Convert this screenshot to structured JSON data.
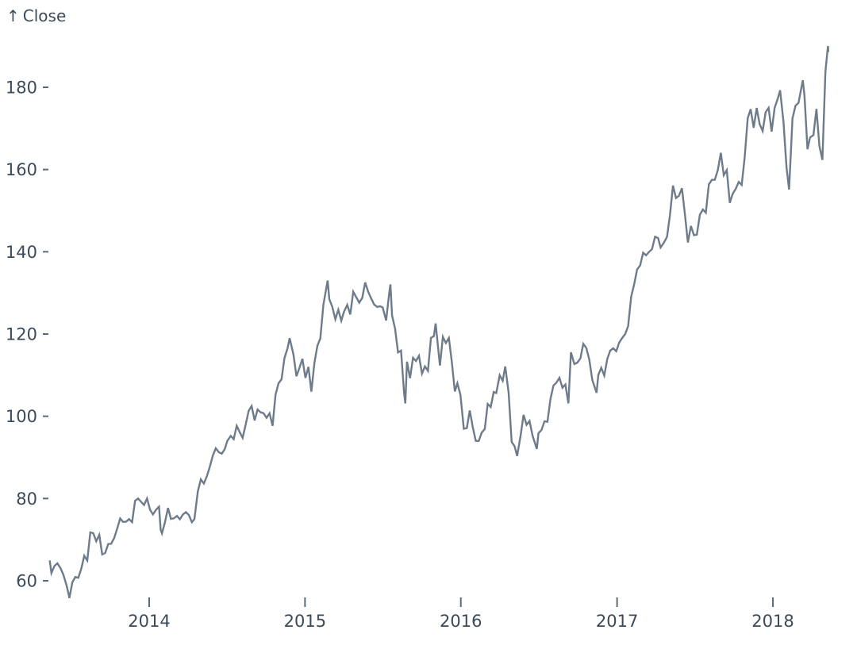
{
  "chart": {
    "y_axis": {
      "label_arrow": "↑",
      "label": "Close",
      "ticks": [
        60,
        80,
        100,
        120,
        140,
        160,
        180
      ]
    },
    "x_axis": {
      "ticks": [
        "2014",
        "2015",
        "2016",
        "2017",
        "2018"
      ]
    },
    "colors": {
      "line": "#6e7b8a",
      "text": "#3d4a57",
      "tick_mark": "#5c6b7a",
      "background": "#ffffff"
    }
  },
  "chart_data": {
    "type": "line",
    "title": "",
    "xlabel": "",
    "ylabel": "Close",
    "x_range": [
      "2013-05-13",
      "2018-05-11"
    ],
    "ylim": [
      55,
      192
    ],
    "grid": false,
    "legend": false,
    "series": [
      {
        "name": "Close",
        "points": [
          [
            "2013-05-13",
            64.96
          ],
          [
            "2013-05-17",
            61.89
          ],
          [
            "2013-05-24",
            63.59
          ],
          [
            "2013-05-31",
            64.25
          ],
          [
            "2013-06-07",
            63.12
          ],
          [
            "2013-06-14",
            61.43
          ],
          [
            "2013-06-21",
            59.07
          ],
          [
            "2013-06-26",
            56.87
          ],
          [
            "2013-06-28",
            55.79
          ],
          [
            "2013-07-05",
            59.63
          ],
          [
            "2013-07-12",
            60.93
          ],
          [
            "2013-07-19",
            60.71
          ],
          [
            "2013-07-26",
            62.99
          ],
          [
            "2013-08-02",
            66.08
          ],
          [
            "2013-08-09",
            64.92
          ],
          [
            "2013-08-16",
            71.76
          ],
          [
            "2013-08-23",
            71.57
          ],
          [
            "2013-08-30",
            69.6
          ],
          [
            "2013-09-06",
            71.17
          ],
          [
            "2013-09-13",
            66.41
          ],
          [
            "2013-09-20",
            66.77
          ],
          [
            "2013-09-27",
            68.96
          ],
          [
            "2013-10-04",
            69.0
          ],
          [
            "2013-10-11",
            70.4
          ],
          [
            "2013-10-18",
            72.7
          ],
          [
            "2013-10-25",
            75.14
          ],
          [
            "2013-11-01",
            74.29
          ],
          [
            "2013-11-08",
            74.37
          ],
          [
            "2013-11-15",
            74.99
          ],
          [
            "2013-11-22",
            74.26
          ],
          [
            "2013-11-29",
            79.44
          ],
          [
            "2013-12-06",
            80.0
          ],
          [
            "2013-12-13",
            79.2
          ],
          [
            "2013-12-20",
            78.43
          ],
          [
            "2013-12-27",
            80.01
          ],
          [
            "2014-01-03",
            77.28
          ],
          [
            "2014-01-10",
            76.13
          ],
          [
            "2014-01-17",
            77.24
          ],
          [
            "2014-01-24",
            78.01
          ],
          [
            "2014-01-28",
            72.36
          ],
          [
            "2014-01-31",
            71.51
          ],
          [
            "2014-02-07",
            74.24
          ],
          [
            "2014-02-14",
            77.71
          ],
          [
            "2014-02-21",
            75.04
          ],
          [
            "2014-02-28",
            75.18
          ],
          [
            "2014-03-07",
            75.77
          ],
          [
            "2014-03-14",
            74.96
          ],
          [
            "2014-03-21",
            76.12
          ],
          [
            "2014-03-28",
            76.69
          ],
          [
            "2014-04-04",
            75.97
          ],
          [
            "2014-04-11",
            74.23
          ],
          [
            "2014-04-17",
            74.99
          ],
          [
            "2014-04-25",
            81.71
          ],
          [
            "2014-05-02",
            84.65
          ],
          [
            "2014-05-09",
            83.65
          ],
          [
            "2014-05-16",
            85.36
          ],
          [
            "2014-05-23",
            87.73
          ],
          [
            "2014-05-30",
            90.43
          ],
          [
            "2014-06-06",
            92.22
          ],
          [
            "2014-06-13",
            91.28
          ],
          [
            "2014-06-20",
            90.91
          ],
          [
            "2014-06-27",
            91.98
          ],
          [
            "2014-07-03",
            94.03
          ],
          [
            "2014-07-11",
            95.22
          ],
          [
            "2014-07-18",
            94.43
          ],
          [
            "2014-07-25",
            97.67
          ],
          [
            "2014-08-01",
            96.13
          ],
          [
            "2014-08-08",
            94.74
          ],
          [
            "2014-08-15",
            97.98
          ],
          [
            "2014-08-22",
            101.32
          ],
          [
            "2014-08-29",
            102.5
          ],
          [
            "2014-09-05",
            98.97
          ],
          [
            "2014-09-12",
            101.66
          ],
          [
            "2014-09-19",
            100.96
          ],
          [
            "2014-09-26",
            100.75
          ],
          [
            "2014-10-03",
            99.62
          ],
          [
            "2014-10-10",
            100.73
          ],
          [
            "2014-10-17",
            97.67
          ],
          [
            "2014-10-24",
            105.22
          ],
          [
            "2014-10-31",
            108.0
          ],
          [
            "2014-11-07",
            109.01
          ],
          [
            "2014-11-14",
            114.18
          ],
          [
            "2014-11-21",
            116.47
          ],
          [
            "2014-11-26",
            119.0
          ],
          [
            "2014-12-05",
            115.0
          ],
          [
            "2014-12-12",
            109.73
          ],
          [
            "2014-12-19",
            111.78
          ],
          [
            "2014-12-26",
            113.99
          ],
          [
            "2015-01-02",
            109.33
          ],
          [
            "2015-01-09",
            112.01
          ],
          [
            "2015-01-16",
            105.99
          ],
          [
            "2015-01-23",
            112.98
          ],
          [
            "2015-01-30",
            117.16
          ],
          [
            "2015-02-06",
            118.93
          ],
          [
            "2015-02-13",
            127.08
          ],
          [
            "2015-02-23",
            133.0
          ],
          [
            "2015-02-27",
            128.46
          ],
          [
            "2015-03-06",
            126.6
          ],
          [
            "2015-03-13",
            123.59
          ],
          [
            "2015-03-20",
            125.9
          ],
          [
            "2015-03-27",
            123.25
          ],
          [
            "2015-04-02",
            125.32
          ],
          [
            "2015-04-10",
            127.1
          ],
          [
            "2015-04-17",
            124.75
          ],
          [
            "2015-04-24",
            130.28
          ],
          [
            "2015-05-01",
            128.95
          ],
          [
            "2015-05-08",
            127.62
          ],
          [
            "2015-05-15",
            128.77
          ],
          [
            "2015-05-22",
            132.54
          ],
          [
            "2015-05-29",
            130.28
          ],
          [
            "2015-06-05",
            128.65
          ],
          [
            "2015-06-12",
            127.17
          ],
          [
            "2015-06-19",
            126.6
          ],
          [
            "2015-06-26",
            126.75
          ],
          [
            "2015-07-02",
            126.44
          ],
          [
            "2015-07-10",
            123.28
          ],
          [
            "2015-07-17",
            129.62
          ],
          [
            "2015-07-20",
            132.07
          ],
          [
            "2015-07-24",
            124.5
          ],
          [
            "2015-07-31",
            121.3
          ],
          [
            "2015-08-07",
            115.52
          ],
          [
            "2015-08-14",
            115.96
          ],
          [
            "2015-08-21",
            105.76
          ],
          [
            "2015-08-24",
            103.12
          ],
          [
            "2015-08-28",
            113.29
          ],
          [
            "2015-09-04",
            109.27
          ],
          [
            "2015-09-11",
            114.21
          ],
          [
            "2015-09-18",
            113.45
          ],
          [
            "2015-09-25",
            114.71
          ],
          [
            "2015-10-02",
            110.38
          ],
          [
            "2015-10-09",
            112.12
          ],
          [
            "2015-10-16",
            111.04
          ],
          [
            "2015-10-23",
            119.08
          ],
          [
            "2015-10-30",
            119.5
          ],
          [
            "2015-11-03",
            122.57
          ],
          [
            "2015-11-13",
            112.34
          ],
          [
            "2015-11-20",
            119.3
          ],
          [
            "2015-11-27",
            117.81
          ],
          [
            "2015-12-04",
            119.03
          ],
          [
            "2015-12-11",
            113.18
          ],
          [
            "2015-12-18",
            106.03
          ],
          [
            "2015-12-24",
            108.03
          ],
          [
            "2015-12-31",
            105.26
          ],
          [
            "2016-01-08",
            96.96
          ],
          [
            "2016-01-15",
            97.13
          ],
          [
            "2016-01-22",
            101.42
          ],
          [
            "2016-01-29",
            97.34
          ],
          [
            "2016-02-05",
            94.02
          ],
          [
            "2016-02-12",
            93.99
          ],
          [
            "2016-02-19",
            96.04
          ],
          [
            "2016-02-26",
            96.91
          ],
          [
            "2016-03-04",
            103.01
          ],
          [
            "2016-03-11",
            102.26
          ],
          [
            "2016-03-18",
            105.92
          ],
          [
            "2016-03-24",
            105.67
          ],
          [
            "2016-04-01",
            109.99
          ],
          [
            "2016-04-08",
            108.66
          ],
          [
            "2016-04-14",
            112.1
          ],
          [
            "2016-04-22",
            105.68
          ],
          [
            "2016-04-29",
            93.74
          ],
          [
            "2016-05-06",
            92.72
          ],
          [
            "2016-05-12",
            90.34
          ],
          [
            "2016-05-20",
            95.22
          ],
          [
            "2016-05-27",
            100.35
          ],
          [
            "2016-06-03",
            97.92
          ],
          [
            "2016-06-10",
            98.83
          ],
          [
            "2016-06-17",
            95.33
          ],
          [
            "2016-06-27",
            92.04
          ],
          [
            "2016-07-01",
            95.89
          ],
          [
            "2016-07-08",
            96.68
          ],
          [
            "2016-07-15",
            98.78
          ],
          [
            "2016-07-22",
            98.66
          ],
          [
            "2016-07-29",
            104.21
          ],
          [
            "2016-08-05",
            107.48
          ],
          [
            "2016-08-12",
            108.18
          ],
          [
            "2016-08-19",
            109.36
          ],
          [
            "2016-08-26",
            106.94
          ],
          [
            "2016-09-02",
            107.73
          ],
          [
            "2016-09-09",
            103.13
          ],
          [
            "2016-09-15",
            115.57
          ],
          [
            "2016-09-23",
            112.71
          ],
          [
            "2016-09-30",
            113.05
          ],
          [
            "2016-10-07",
            114.06
          ],
          [
            "2016-10-14",
            117.63
          ],
          [
            "2016-10-21",
            116.6
          ],
          [
            "2016-10-28",
            113.72
          ],
          [
            "2016-11-04",
            108.84
          ],
          [
            "2016-11-14",
            105.71
          ],
          [
            "2016-11-18",
            110.06
          ],
          [
            "2016-11-25",
            111.79
          ],
          [
            "2016-12-02",
            109.9
          ],
          [
            "2016-12-09",
            113.95
          ],
          [
            "2016-12-16",
            115.97
          ],
          [
            "2016-12-23",
            116.52
          ],
          [
            "2016-12-30",
            115.82
          ],
          [
            "2017-01-06",
            117.91
          ],
          [
            "2017-01-13",
            119.04
          ],
          [
            "2017-01-20",
            120.0
          ],
          [
            "2017-01-27",
            121.95
          ],
          [
            "2017-02-03",
            129.08
          ],
          [
            "2017-02-10",
            132.12
          ],
          [
            "2017-02-17",
            135.72
          ],
          [
            "2017-02-24",
            136.66
          ],
          [
            "2017-03-03",
            139.78
          ],
          [
            "2017-03-10",
            139.14
          ],
          [
            "2017-03-17",
            139.99
          ],
          [
            "2017-03-24",
            140.64
          ],
          [
            "2017-03-31",
            143.66
          ],
          [
            "2017-04-07",
            143.34
          ],
          [
            "2017-04-13",
            141.05
          ],
          [
            "2017-04-21",
            142.27
          ],
          [
            "2017-04-28",
            143.65
          ],
          [
            "2017-05-05",
            148.96
          ],
          [
            "2017-05-12",
            156.1
          ],
          [
            "2017-05-19",
            153.06
          ],
          [
            "2017-05-26",
            153.61
          ],
          [
            "2017-06-02",
            155.45
          ],
          [
            "2017-06-09",
            148.98
          ],
          [
            "2017-06-16",
            142.27
          ],
          [
            "2017-06-23",
            146.28
          ],
          [
            "2017-06-30",
            144.02
          ],
          [
            "2017-07-07",
            144.18
          ],
          [
            "2017-07-14",
            149.04
          ],
          [
            "2017-07-21",
            150.27
          ],
          [
            "2017-07-28",
            149.5
          ],
          [
            "2017-08-04",
            156.39
          ],
          [
            "2017-08-11",
            157.48
          ],
          [
            "2017-08-18",
            157.5
          ],
          [
            "2017-08-25",
            159.86
          ],
          [
            "2017-09-01",
            164.05
          ],
          [
            "2017-09-08",
            158.63
          ],
          [
            "2017-09-15",
            159.88
          ],
          [
            "2017-09-22",
            151.89
          ],
          [
            "2017-09-29",
            154.12
          ],
          [
            "2017-10-06",
            155.3
          ],
          [
            "2017-10-13",
            156.99
          ],
          [
            "2017-10-20",
            156.25
          ],
          [
            "2017-10-27",
            163.05
          ],
          [
            "2017-11-03",
            172.5
          ],
          [
            "2017-11-10",
            174.67
          ],
          [
            "2017-11-17",
            170.15
          ],
          [
            "2017-11-24",
            174.97
          ],
          [
            "2017-12-01",
            171.05
          ],
          [
            "2017-12-08",
            169.37
          ],
          [
            "2017-12-15",
            173.97
          ],
          [
            "2017-12-22",
            175.01
          ],
          [
            "2017-12-29",
            169.23
          ],
          [
            "2018-01-05",
            175.0
          ],
          [
            "2018-01-12",
            177.09
          ],
          [
            "2018-01-18",
            179.26
          ],
          [
            "2018-01-26",
            171.51
          ],
          [
            "2018-02-02",
            160.5
          ],
          [
            "2018-02-08",
            155.15
          ],
          [
            "2018-02-16",
            172.43
          ],
          [
            "2018-02-23",
            175.5
          ],
          [
            "2018-03-02",
            176.21
          ],
          [
            "2018-03-12",
            181.72
          ],
          [
            "2018-03-16",
            178.02
          ],
          [
            "2018-03-23",
            164.94
          ],
          [
            "2018-03-29",
            167.78
          ],
          [
            "2018-04-06",
            168.38
          ],
          [
            "2018-04-13",
            174.73
          ],
          [
            "2018-04-20",
            165.72
          ],
          [
            "2018-04-27",
            162.32
          ],
          [
            "2018-05-04",
            183.83
          ],
          [
            "2018-05-10",
            190.04
          ],
          [
            "2018-05-11",
            188.59
          ]
        ]
      }
    ]
  }
}
